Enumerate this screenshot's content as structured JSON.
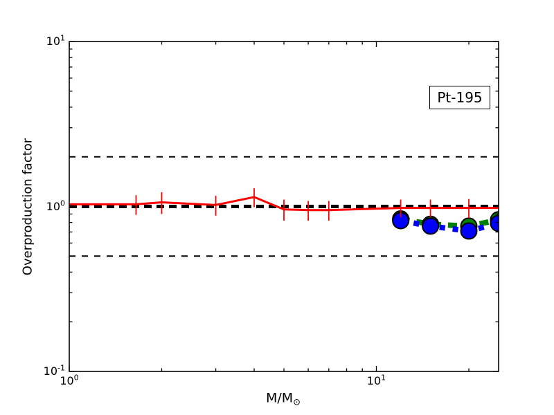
{
  "figure": {
    "background": "#ffffff",
    "frame_color": "#000000"
  },
  "chart_data": {
    "type": "line",
    "title": "",
    "xlabel": {
      "main": "M/M",
      "sub": "⊙"
    },
    "ylabel": "Overproduction factor",
    "annotation": {
      "label": "Pt-195"
    },
    "xscale": "log",
    "yscale": "log",
    "xlim": [
      1,
      25
    ],
    "ylim": [
      0.1,
      10
    ],
    "grid": false,
    "legend": "none",
    "xticks": [
      {
        "value": 1,
        "base": "10",
        "exp": "0"
      },
      {
        "value": 10,
        "base": "10",
        "exp": "1"
      }
    ],
    "yticks": [
      {
        "value": 10,
        "base": "10",
        "exp": "1"
      },
      {
        "value": 1,
        "base": "10",
        "exp": "0"
      },
      {
        "value": 0.1,
        "base": "10",
        "exp": "-1"
      }
    ],
    "x_minor_ticks": [
      2,
      3,
      4,
      5,
      6,
      7,
      8,
      9,
      20
    ],
    "y_minor_ticks": [
      0.2,
      0.3,
      0.4,
      0.5,
      0.6,
      0.7,
      0.8,
      0.9,
      2,
      3,
      4,
      5,
      6,
      7,
      8,
      9
    ],
    "reference_lines": [
      {
        "y": 2,
        "color": "#000000",
        "style": "dashed",
        "width": 2
      },
      {
        "y": 1,
        "color": "#000000",
        "style": "dashed",
        "width": 5
      },
      {
        "y": 0.5,
        "color": "#000000",
        "style": "dashed",
        "width": 2
      }
    ],
    "series": [
      {
        "name": "green-dashed-circles",
        "color": "#008000",
        "style": "dashed",
        "width": 8,
        "marker": "circle",
        "marker_size": 11.5,
        "marker_edge_color": "#000000",
        "x": [
          12,
          15,
          20,
          25
        ],
        "y": [
          0.84,
          0.78,
          0.76,
          0.83
        ]
      },
      {
        "name": "blue-dotted-circles",
        "color": "#0000ff",
        "style": "dotted",
        "width": 8,
        "marker": "circle",
        "marker_size": 11.5,
        "marker_edge_color": "#000000",
        "x": [
          12,
          15,
          20,
          25
        ],
        "y": [
          0.82,
          0.76,
          0.71,
          0.79
        ]
      },
      {
        "name": "red-solid-errorbars",
        "color": "#ff0000",
        "style": "solid",
        "width": 3,
        "marker": "none",
        "errorbar_width": 1.8,
        "x": [
          1.0,
          1.65,
          2.0,
          3.0,
          4.0,
          5.0,
          6.0,
          7.0,
          12.0,
          15.0,
          20.0,
          25.0
        ],
        "y": [
          1.03,
          1.03,
          1.06,
          1.02,
          1.14,
          0.96,
          0.95,
          0.95,
          0.98,
          0.98,
          0.98,
          0.98
        ],
        "yerr": [
          0,
          0.14,
          0.16,
          0.14,
          0.15,
          0.14,
          0.13,
          0.13,
          0.12,
          0.12,
          0.13,
          0
        ]
      }
    ]
  }
}
